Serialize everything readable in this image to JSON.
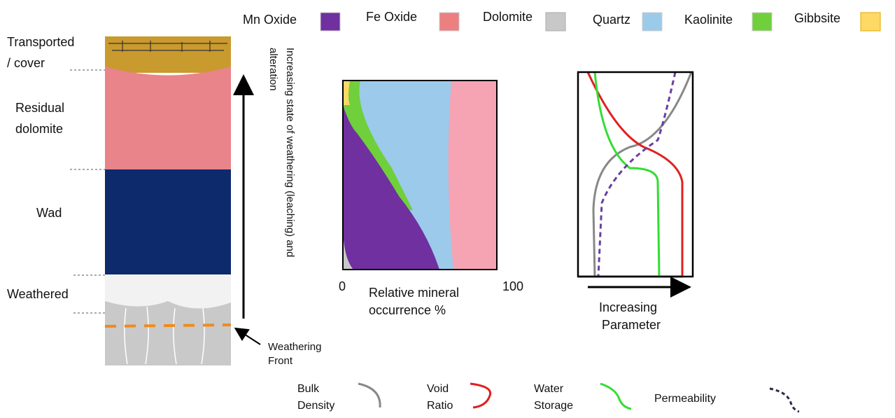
{
  "mineral_legend": [
    "Mn Oxide",
    "Fe Oxide",
    "Dolomite",
    "Quartz",
    "Kaolinite",
    "Gibbsite"
  ],
  "layers": [
    {
      "lines": [
        "Transported",
        "/ cover"
      ]
    },
    {
      "lines": [
        "Residual",
        "dolomite"
      ]
    },
    {
      "lines": [
        "Wad"
      ]
    },
    {
      "lines": [
        "Weathered"
      ]
    }
  ],
  "arrow_label": [
    "Increasing state of weathering (leaching) and",
    "alteration"
  ],
  "front_label": [
    "Weathering",
    "Front"
  ],
  "occurrence_axis": {
    "min": "0",
    "max": "100",
    "label": [
      "Relative mineral",
      "occurrence %"
    ]
  },
  "parameter_axis": {
    "label": [
      "Increasing",
      "Parameter"
    ]
  },
  "curve_legend": [
    {
      "lines": [
        "Bulk",
        "Density"
      ]
    },
    {
      "lines": [
        "Void",
        "Ratio"
      ]
    },
    {
      "lines": [
        "Water",
        "Storage"
      ]
    },
    {
      "lines": [
        "Permeability"
      ]
    }
  ]
}
